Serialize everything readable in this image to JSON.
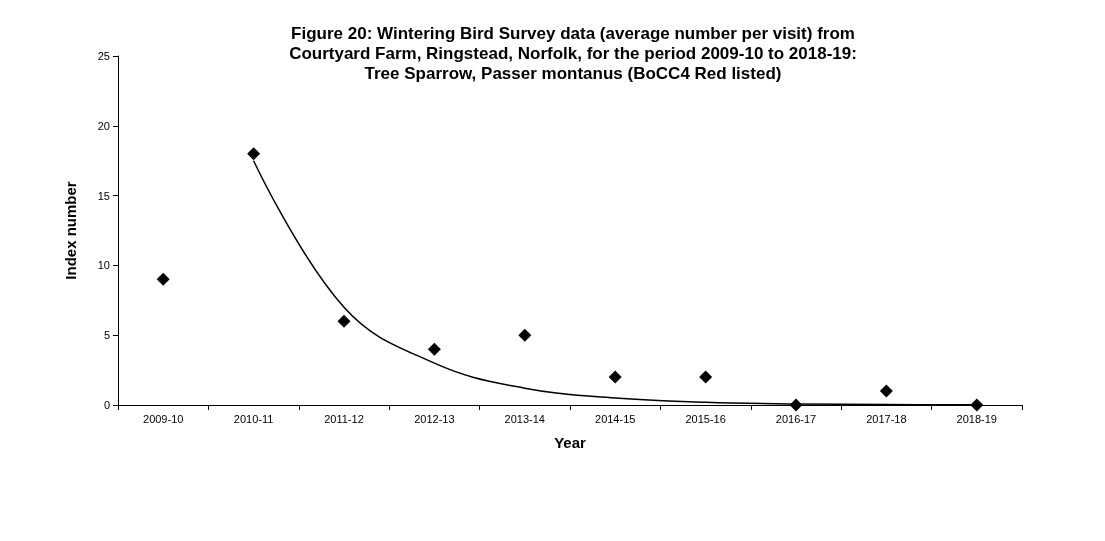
{
  "chart_data": {
    "type": "scatter",
    "title": "Figure 20: Wintering Bird Survey data (average number per visit) from\nCourtyard Farm, Ringstead, Norfolk, for the period 2009-10 to 2018-19:\nTree Sparrow, Passer montanus (BoCC4 Red listed)",
    "xlabel": "Year",
    "ylabel": "Index number",
    "categories": [
      "2009-10",
      "2010-11",
      "2011-12",
      "2012-13",
      "2013-14",
      "2014-15",
      "2015-16",
      "2016-17",
      "2017-18",
      "2018-19"
    ],
    "series": [
      {
        "color": "#000000",
        "marker": "diamond",
        "values": [
          9,
          18,
          6,
          4,
          5,
          2,
          2,
          0,
          1,
          0
        ]
      },
      {
        "type": "line",
        "color": "#000000",
        "marker": "none",
        "line_style": "solid",
        "values": [
          null,
          17.5,
          7,
          3,
          1.2,
          0.5,
          0.2,
          0.08,
          0.03,
          0.01
        ]
      }
    ],
    "ylim": [
      0,
      25
    ],
    "yticks": [
      0,
      5,
      10,
      15,
      20,
      25
    ],
    "grid": false
  }
}
